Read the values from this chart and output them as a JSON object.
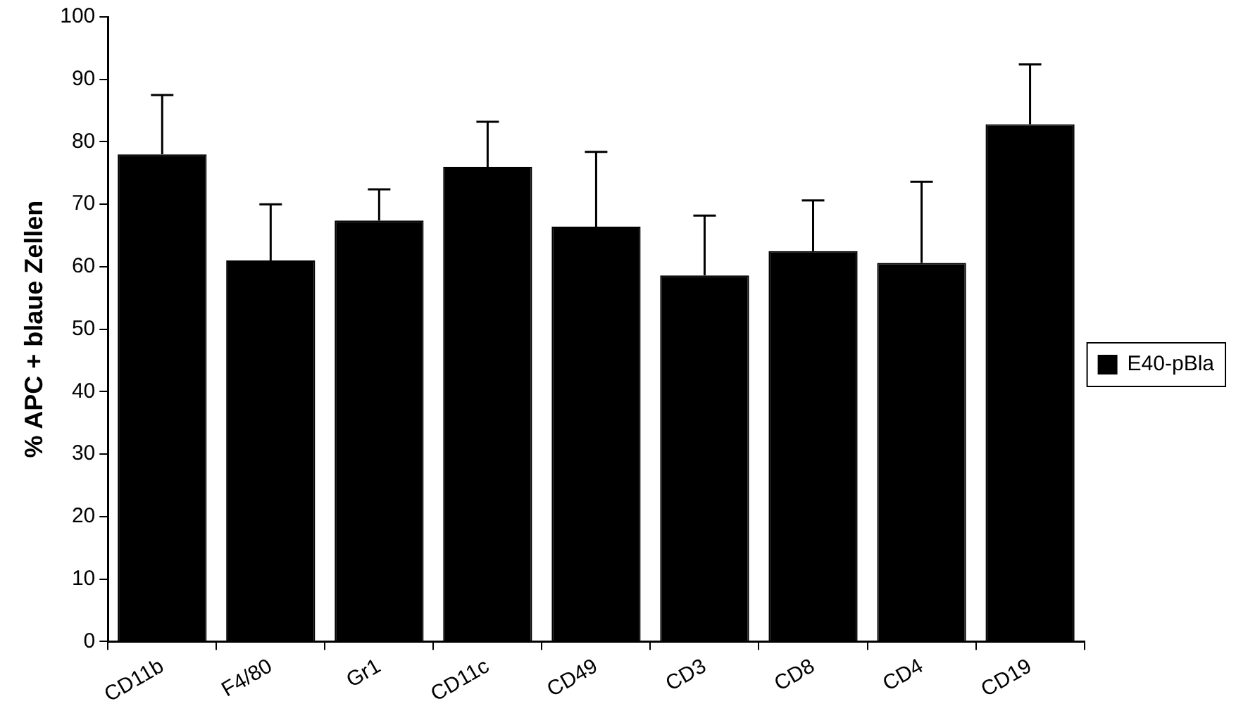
{
  "chart_data": {
    "type": "bar",
    "ylabel": "% APC + blaue Zellen",
    "categories": [
      "CD11b",
      "F4/80",
      "Gr1",
      "CD11c",
      "CD49",
      "CD3",
      "CD8",
      "CD4",
      "CD19"
    ],
    "series": [
      {
        "name": "E40-pBla",
        "color": "#000000",
        "values": [
          78,
          61,
          67.4,
          76,
          66.4,
          58.6,
          62.5,
          60.6,
          82.8
        ],
        "errors": [
          [
            78,
            87.5
          ],
          [
            61,
            70
          ],
          [
            67.4,
            72.4
          ],
          [
            76,
            83.2
          ],
          [
            66.4,
            78.4
          ],
          [
            58.6,
            68.2
          ],
          [
            62.5,
            70.6
          ],
          [
            60.6,
            73.6
          ],
          [
            82.8,
            92.4
          ]
        ]
      }
    ],
    "ylim": [
      0,
      100
    ],
    "yticks": [
      0,
      10,
      20,
      30,
      40,
      50,
      60,
      70,
      80,
      90,
      100
    ],
    "grid": false,
    "legend": "right"
  }
}
